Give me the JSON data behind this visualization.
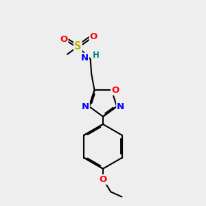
{
  "bg_color": "#eeeeee",
  "bond_color": "#000000",
  "bond_width": 1.5,
  "atom_colors": {
    "C": "#000000",
    "N": "#0000ff",
    "O": "#ff0000",
    "S": "#b8b800",
    "H": "#008080"
  },
  "font_size": 9.5,
  "figsize": [
    3.0,
    3.0
  ],
  "dpi": 100
}
